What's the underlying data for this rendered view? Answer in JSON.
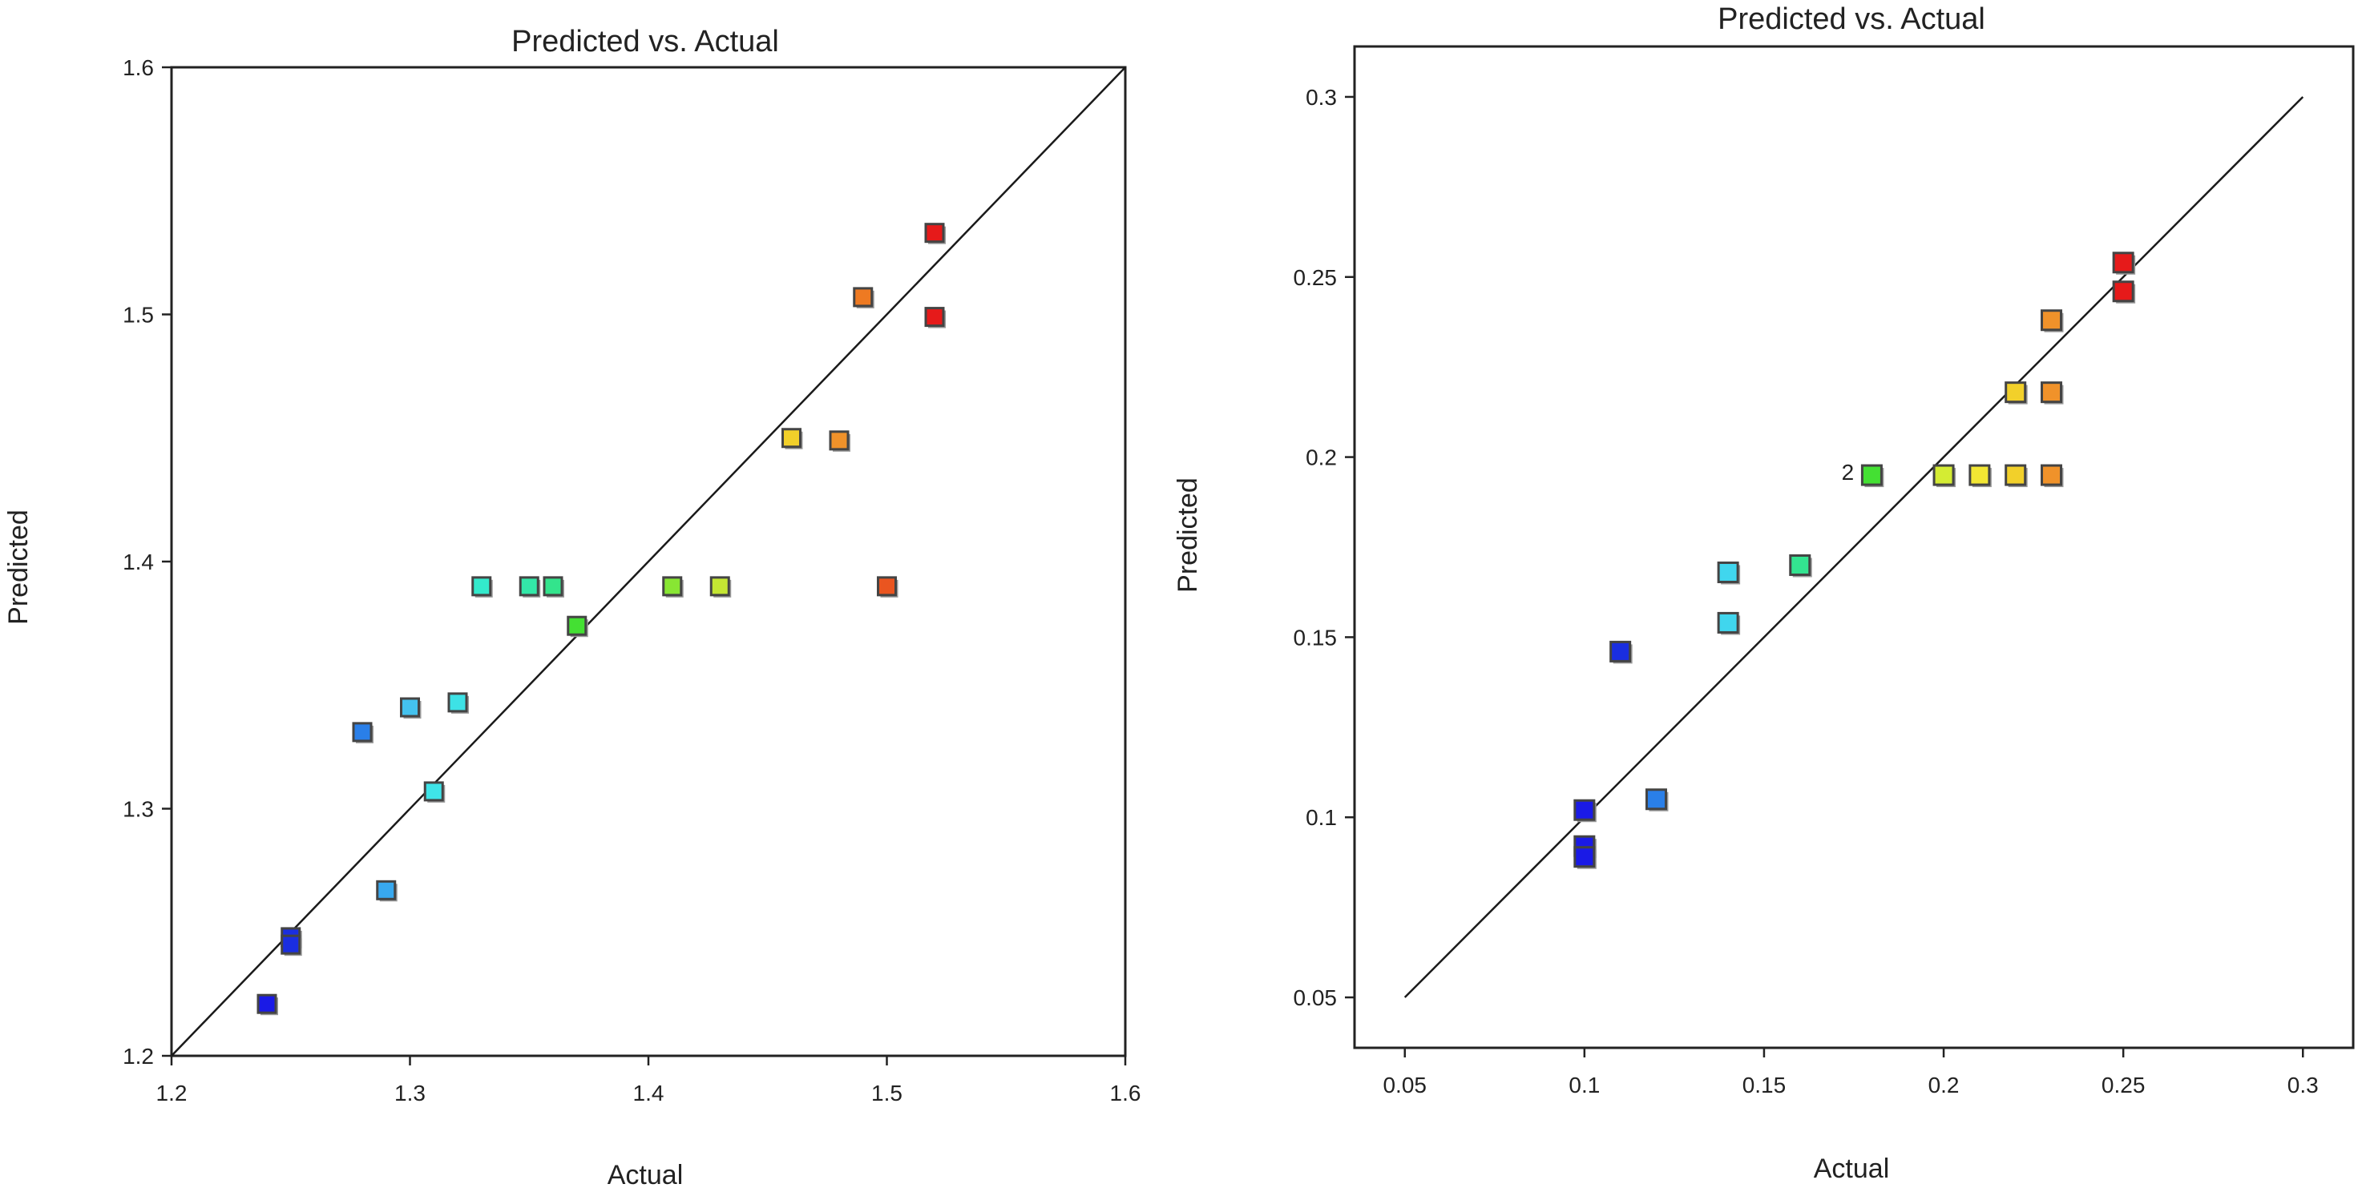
{
  "chart_data": [
    {
      "type": "scatter",
      "title": "Predicted vs. Actual",
      "xlabel": "Actual",
      "ylabel": "Predicted",
      "xlim": [
        1.2,
        1.6
      ],
      "ylim": [
        1.2,
        1.6
      ],
      "xticks": [
        1.2,
        1.3,
        1.4,
        1.5,
        1.6
      ],
      "yticks": [
        1.2,
        1.3,
        1.4,
        1.5,
        1.6
      ],
      "xtick_labels": [
        "1.2",
        "1.3",
        "1.4",
        "1.5",
        "1.6"
      ],
      "ytick_labels": [
        "1.2",
        "1.3",
        "1.4",
        "1.5",
        "1.6"
      ],
      "reference_line": [
        [
          1.2,
          1.2
        ],
        [
          1.6,
          1.6
        ]
      ],
      "grid": false,
      "points": [
        {
          "x": 1.24,
          "y": 1.221,
          "color": "#1a1ae6"
        },
        {
          "x": 1.25,
          "y": 1.248,
          "color": "#1a2ee0"
        },
        {
          "x": 1.25,
          "y": 1.245,
          "color": "#1a2ee0"
        },
        {
          "x": 1.28,
          "y": 1.331,
          "color": "#2a7fe8"
        },
        {
          "x": 1.29,
          "y": 1.267,
          "color": "#38a8ee"
        },
        {
          "x": 1.3,
          "y": 1.341,
          "color": "#44c2ee"
        },
        {
          "x": 1.31,
          "y": 1.307,
          "color": "#3fe4e8"
        },
        {
          "x": 1.32,
          "y": 1.343,
          "color": "#3de2e6"
        },
        {
          "x": 1.33,
          "y": 1.39,
          "color": "#33eacc"
        },
        {
          "x": 1.35,
          "y": 1.39,
          "color": "#33e8a8"
        },
        {
          "x": 1.36,
          "y": 1.39,
          "color": "#33e48c"
        },
        {
          "x": 1.37,
          "y": 1.374,
          "color": "#44e033"
        },
        {
          "x": 1.41,
          "y": 1.39,
          "color": "#88e633"
        },
        {
          "x": 1.43,
          "y": 1.39,
          "color": "#c4e633"
        },
        {
          "x": 1.46,
          "y": 1.45,
          "color": "#f2d02a"
        },
        {
          "x": 1.48,
          "y": 1.449,
          "color": "#f0922a"
        },
        {
          "x": 1.49,
          "y": 1.507,
          "color": "#ee7a22"
        },
        {
          "x": 1.5,
          "y": 1.39,
          "color": "#ea5520"
        },
        {
          "x": 1.52,
          "y": 1.533,
          "color": "#e61a1a"
        },
        {
          "x": 1.52,
          "y": 1.499,
          "color": "#e61a1a"
        }
      ]
    },
    {
      "type": "scatter",
      "title": "Predicted vs. Actual",
      "xlabel": "Actual",
      "ylabel": "Predicted",
      "xlim": [
        0.036,
        0.314
      ],
      "ylim": [
        0.036,
        0.314
      ],
      "xticks": [
        0.05,
        0.1,
        0.15,
        0.2,
        0.25,
        0.3
      ],
      "yticks": [
        0.05,
        0.1,
        0.15,
        0.2,
        0.25,
        0.3
      ],
      "xtick_labels": [
        "0.05",
        "0.1",
        "0.15",
        "0.2",
        "0.25",
        "0.3"
      ],
      "ytick_labels": [
        "0.05",
        "0.1",
        "0.15",
        "0.2",
        "0.25",
        "0.3"
      ],
      "reference_line": [
        [
          0.05,
          0.05
        ],
        [
          0.3,
          0.3
        ]
      ],
      "grid": false,
      "points": [
        {
          "x": 0.1,
          "y": 0.102,
          "color": "#1a1ae6"
        },
        {
          "x": 0.1,
          "y": 0.092,
          "color": "#1a1ae6"
        },
        {
          "x": 0.1,
          "y": 0.089,
          "color": "#1a1ae6"
        },
        {
          "x": 0.11,
          "y": 0.146,
          "color": "#1a2ee0"
        },
        {
          "x": 0.12,
          "y": 0.105,
          "color": "#2a7fe8"
        },
        {
          "x": 0.14,
          "y": 0.168,
          "color": "#40d6ee"
        },
        {
          "x": 0.14,
          "y": 0.154,
          "color": "#40d6ee"
        },
        {
          "x": 0.16,
          "y": 0.17,
          "color": "#33e490"
        },
        {
          "x": 0.18,
          "y": 0.195,
          "color": "#44e033"
        },
        {
          "x": 0.2,
          "y": 0.195,
          "color": "#d4ec33"
        },
        {
          "x": 0.21,
          "y": 0.195,
          "color": "#f2e633"
        },
        {
          "x": 0.22,
          "y": 0.195,
          "color": "#f2d02a"
        },
        {
          "x": 0.22,
          "y": 0.218,
          "color": "#f2d02a"
        },
        {
          "x": 0.23,
          "y": 0.195,
          "color": "#f0922a"
        },
        {
          "x": 0.23,
          "y": 0.218,
          "color": "#f0922a"
        },
        {
          "x": 0.23,
          "y": 0.238,
          "color": "#f0922a"
        },
        {
          "x": 0.25,
          "y": 0.246,
          "color": "#e61a1a"
        },
        {
          "x": 0.25,
          "y": 0.254,
          "color": "#e61a1a"
        }
      ],
      "annotations": [
        {
          "text": "2",
          "x": 0.18,
          "y": 0.195
        }
      ]
    }
  ]
}
